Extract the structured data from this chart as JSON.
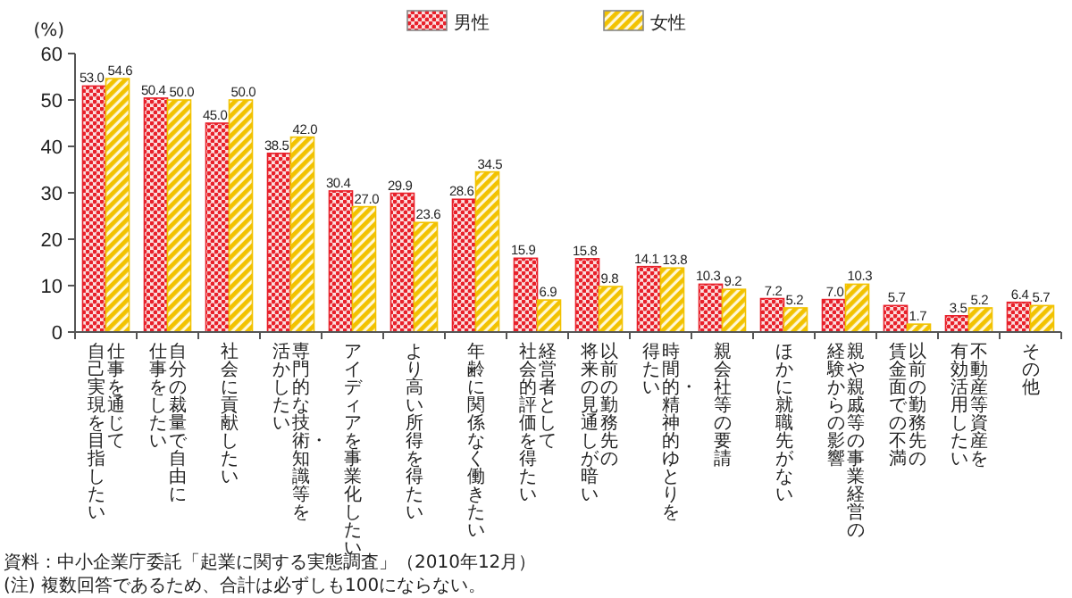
{
  "chart_data": {
    "type": "bar",
    "ylabel": "(%)",
    "categories": [
      "仕事を通じて自己実現を目指したい",
      "自分の裁量で自由に仕事をしたい",
      "社会に貢献したい",
      "専門的な技術・知識等を活かしたい",
      "アイディアを事業化したい",
      "より高い所得を得たい",
      "年齢に関係なく働きたい",
      "経営者として社会的評価を得たい",
      "以前の勤務先の将来の見通しが暗い",
      "時間的・精神的ゆとりを得たい",
      "親会社等の要請",
      "ほかに就職先がない",
      "親や親戚等の事業経営の経験からの影響",
      "以前の勤務先の賃金面での不満",
      "不動産等資産を有効活用したい",
      "その他"
    ],
    "series": [
      {
        "name": "男性",
        "color": "#e8202a",
        "values": [
          53.0,
          50.4,
          45.0,
          38.5,
          30.4,
          29.9,
          28.6,
          15.9,
          15.8,
          14.1,
          10.3,
          7.2,
          7.0,
          5.7,
          3.5,
          6.4
        ],
        "value_labels": [
          "53.0",
          "50.4",
          "45.0",
          "38.5",
          "30.4",
          "29.9",
          "28.6",
          "15.9",
          "15.8",
          "14.1",
          "10.3",
          "7.2",
          "7.0",
          "5.7",
          "3.5",
          "6.4"
        ]
      },
      {
        "name": "女性",
        "color": "#f2c200",
        "values": [
          54.6,
          50.0,
          50.0,
          42.0,
          27.0,
          23.6,
          34.5,
          6.9,
          9.8,
          13.8,
          9.2,
          5.2,
          10.3,
          1.7,
          5.2,
          5.7
        ],
        "value_labels": [
          "54.6",
          "50.0",
          "50.0",
          "42.0",
          "27.0",
          "23.6",
          "34.5",
          "6.9",
          "9.8",
          "13.8",
          "9.2",
          "5.2",
          "10.3",
          "1.7",
          "5.2",
          "5.7"
        ]
      }
    ],
    "ylim": [
      0,
      60
    ],
    "yticks": [
      0,
      10,
      20,
      30,
      40,
      50,
      60
    ],
    "legend": "top",
    "grid": false,
    "annotations": [
      "資料：中小企業庁委託「起業に関する実態調査」（2010年12月）",
      "(注) 複数回答であるため、合計は必ずしも100にならない。"
    ]
  }
}
